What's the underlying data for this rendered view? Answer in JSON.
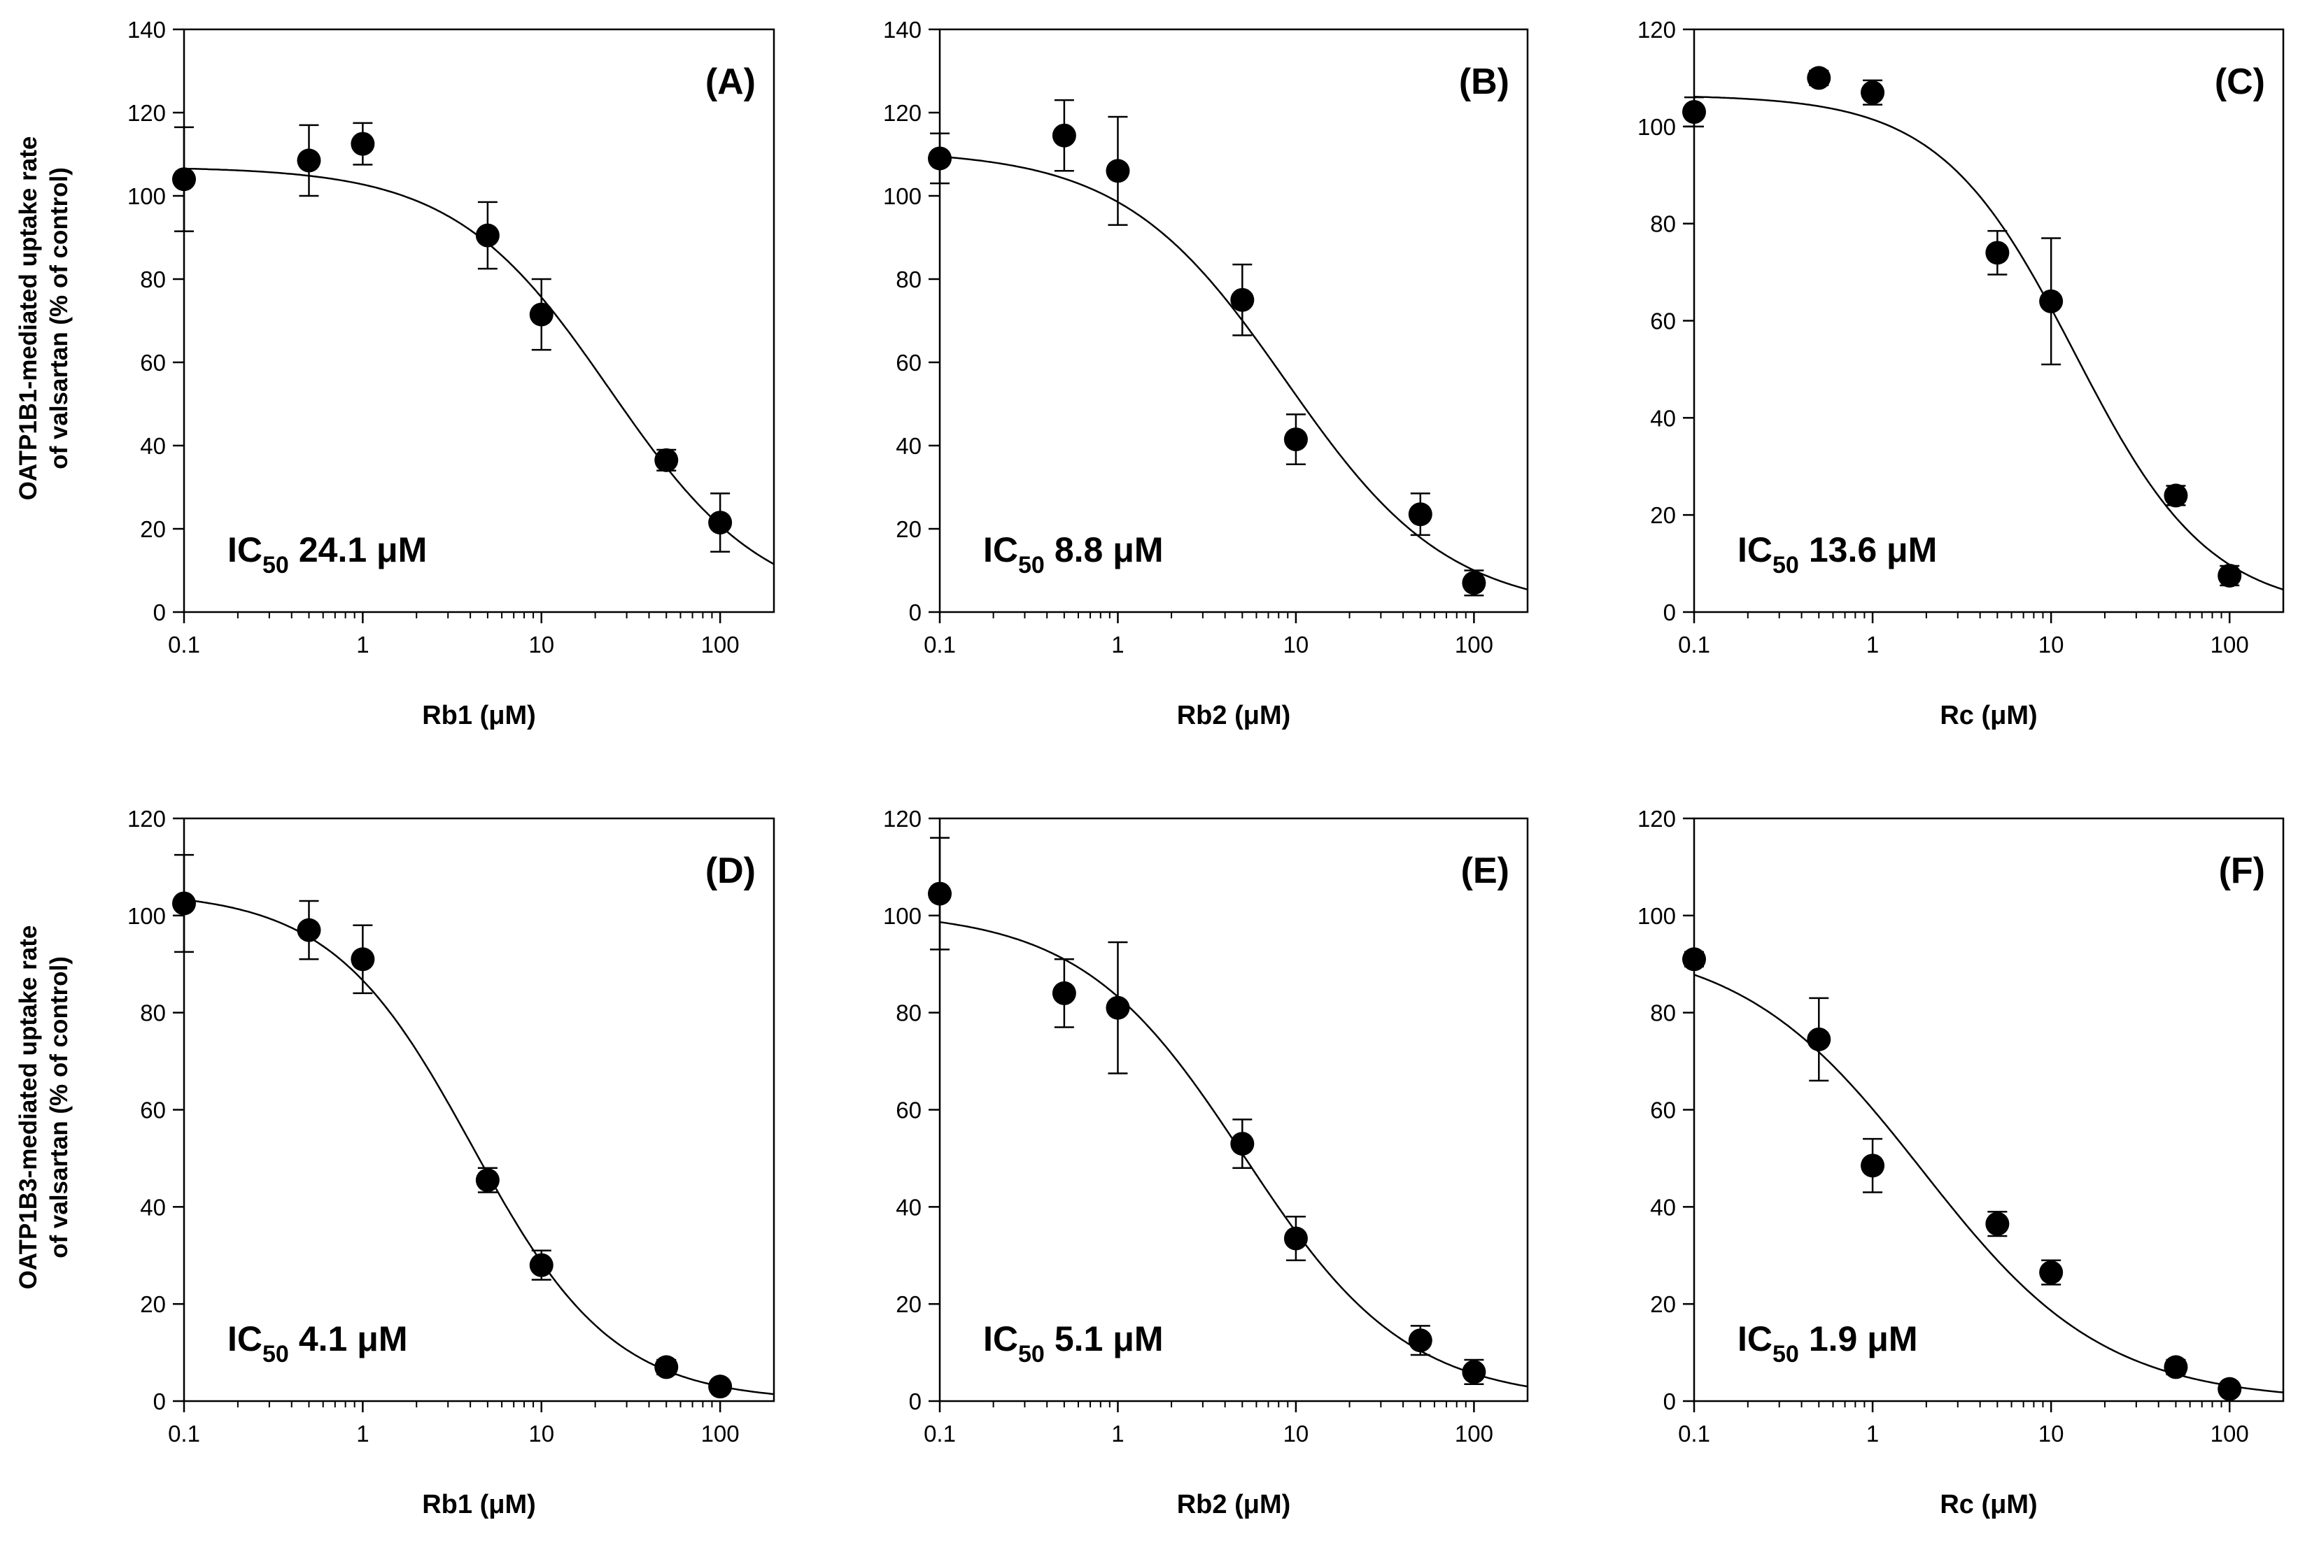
{
  "figure": {
    "row_ylabels": [
      {
        "line1": "OATP1B1-mediated uptake rate",
        "line2": "of valsartan (% of control)"
      },
      {
        "line1": "OATP1B3-mediated uptake rate",
        "line2": "of valsartan (% of control)"
      }
    ]
  },
  "chart_data": [
    {
      "type": "scatter",
      "panel": "(A)",
      "xlabel": "Rb1 (μM)",
      "xscale": "log",
      "xlim": [
        0.1,
        200
      ],
      "x_ticks": [
        "0.1",
        "1",
        "10",
        "100"
      ],
      "ylim": [
        0,
        140
      ],
      "y_ticks": [
        "0",
        "20",
        "40",
        "60",
        "80",
        "100",
        "120",
        "140"
      ],
      "ic50_prefix": "IC",
      "ic50_sub": "50",
      "ic50_text": "24.1 μM",
      "x": [
        0.1,
        0.5,
        1,
        5,
        10,
        50,
        100
      ],
      "y": [
        104,
        108.5,
        112.5,
        90.5,
        71.5,
        36.5,
        21.5
      ],
      "err": [
        12.5,
        8.5,
        5.0,
        8.0,
        8.5,
        2.5,
        7.0
      ],
      "fit": {
        "top": 107,
        "bottom": 0,
        "ic50": 24.1,
        "hill": 1.0
      }
    },
    {
      "type": "scatter",
      "panel": "(B)",
      "xlabel": "Rb2 (μM)",
      "xscale": "log",
      "xlim": [
        0.1,
        200
      ],
      "x_ticks": [
        "0.1",
        "1",
        "10",
        "100"
      ],
      "ylim": [
        0,
        140
      ],
      "y_ticks": [
        "0",
        "20",
        "40",
        "60",
        "80",
        "100",
        "120",
        "140"
      ],
      "ic50_prefix": "IC",
      "ic50_sub": "50",
      "ic50_text": "8.8 μM",
      "x": [
        0.1,
        0.5,
        1,
        5,
        10,
        50,
        100
      ],
      "y": [
        109,
        114.5,
        106,
        75,
        41.5,
        23.5,
        7
      ],
      "err": [
        6.0,
        8.5,
        13.0,
        8.5,
        6.0,
        5.0,
        3.0
      ],
      "fit": {
        "top": 111,
        "bottom": 0,
        "ic50": 8.8,
        "hill": 0.95
      }
    },
    {
      "type": "scatter",
      "panel": "(C)",
      "xlabel": "Rc (μM)",
      "xscale": "log",
      "xlim": [
        0.1,
        200
      ],
      "x_ticks": [
        "0.1",
        "1",
        "10",
        "100"
      ],
      "ylim": [
        0,
        120
      ],
      "y_ticks": [
        "0",
        "20",
        "40",
        "60",
        "80",
        "100",
        "120"
      ],
      "ic50_prefix": "IC",
      "ic50_sub": "50",
      "ic50_text": "13.6 μM",
      "x": [
        0.1,
        0.5,
        1,
        5,
        10,
        50,
        100
      ],
      "y": [
        103,
        110,
        107,
        74,
        64,
        24,
        7.5
      ],
      "err": [
        3.0,
        1.5,
        2.5,
        4.5,
        13.0,
        2.0,
        2.0
      ],
      "fit": {
        "top": 106.5,
        "bottom": 0,
        "ic50": 13.6,
        "hill": 1.15
      }
    },
    {
      "type": "scatter",
      "panel": "(D)",
      "xlabel": "Rb1 (μM)",
      "xscale": "log",
      "xlim": [
        0.1,
        200
      ],
      "x_ticks": [
        "0.1",
        "1",
        "10",
        "100"
      ],
      "ylim": [
        0,
        120
      ],
      "y_ticks": [
        "0",
        "20",
        "40",
        "60",
        "80",
        "100",
        "120"
      ],
      "ic50_prefix": "IC",
      "ic50_sub": "50",
      "ic50_text": "4.1 μM",
      "x": [
        0.1,
        0.5,
        1,
        5,
        10,
        50,
        100
      ],
      "y": [
        102.5,
        97,
        91,
        45.5,
        28,
        7,
        3
      ],
      "err": [
        10.0,
        6.0,
        7.0,
        2.5,
        3.0,
        1.5,
        1.0
      ],
      "fit": {
        "top": 105,
        "bottom": 0,
        "ic50": 4.1,
        "hill": 1.1
      }
    },
    {
      "type": "scatter",
      "panel": "(E)",
      "xlabel": "Rb2 (μM)",
      "xscale": "log",
      "xlim": [
        0.1,
        200
      ],
      "x_ticks": [
        "0.1",
        "1",
        "10",
        "100"
      ],
      "ylim": [
        0,
        120
      ],
      "y_ticks": [
        "0",
        "20",
        "40",
        "60",
        "80",
        "100",
        "120"
      ],
      "ic50_prefix": "IC",
      "ic50_sub": "50",
      "ic50_text": "5.1 μM",
      "x": [
        0.1,
        0.5,
        1,
        5,
        10,
        50,
        100
      ],
      "y": [
        104.5,
        84,
        81,
        53,
        33.5,
        12.5,
        6
      ],
      "err": [
        11.5,
        7.0,
        13.5,
        5.0,
        4.5,
        3.0,
        2.5
      ],
      "fit": {
        "top": 101,
        "bottom": 0,
        "ic50": 5.1,
        "hill": 0.95
      }
    },
    {
      "type": "scatter",
      "panel": "(F)",
      "xlabel": "Rc (μM)",
      "xscale": "log",
      "xlim": [
        0.1,
        200
      ],
      "x_ticks": [
        "0.1",
        "1",
        "10",
        "100"
      ],
      "ylim": [
        0,
        120
      ],
      "y_ticks": [
        "0",
        "20",
        "40",
        "60",
        "80",
        "100",
        "120"
      ],
      "ic50_prefix": "IC",
      "ic50_sub": "50",
      "ic50_text": "1.9 μM",
      "x": [
        0.1,
        0.5,
        1,
        5,
        10,
        50,
        100
      ],
      "y": [
        91,
        74.5,
        48.5,
        36.5,
        26.5,
        7,
        2.5
      ],
      "err": [
        1.5,
        8.5,
        5.5,
        2.5,
        2.5,
        1.5,
        1.0
      ],
      "fit": {
        "top": 95,
        "bottom": 0,
        "ic50": 1.9,
        "hill": 0.85
      }
    }
  ]
}
